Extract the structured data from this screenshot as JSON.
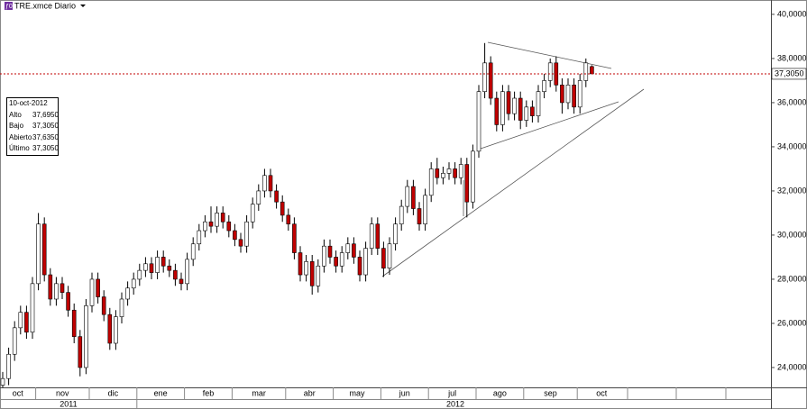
{
  "header": {
    "icon_label": "ƒ0",
    "title": "TRE.xmce Diario"
  },
  "info_box": {
    "date": "10-oct-2012",
    "rows": [
      [
        "Alto",
        "37,6950"
      ],
      [
        "Bajo",
        "37,3050"
      ],
      [
        "Abierto",
        "37,6350"
      ],
      [
        "Último",
        "37,3050"
      ]
    ]
  },
  "chart_data": {
    "type": "candlestick",
    "categories": [
      "oct",
      null,
      null,
      null,
      null,
      null,
      "nov",
      null,
      null,
      null,
      null,
      null,
      null,
      null,
      null,
      "dic",
      null,
      null,
      null,
      null,
      null,
      null,
      null,
      "ene",
      null,
      null,
      null,
      null,
      null,
      null,
      null,
      "feb",
      null,
      null,
      null,
      null,
      null,
      null,
      null,
      "mar",
      null,
      null,
      null,
      null,
      null,
      null,
      null,
      null,
      "abr",
      null,
      null,
      null,
      null,
      null,
      null,
      null,
      "may",
      null,
      null,
      null,
      null,
      null,
      null,
      null,
      "jun",
      null,
      null,
      null,
      null,
      null,
      null,
      null,
      "jul",
      null,
      null,
      null,
      null,
      null,
      null,
      null,
      "ago",
      null,
      null,
      null,
      null,
      null,
      null,
      null,
      "sep",
      null,
      null,
      null,
      null,
      null,
      null,
      null,
      null,
      "oct",
      null,
      null
    ],
    "years": [
      "2011",
      "2012"
    ],
    "open": [
      23.2,
      23.5,
      24.6,
      25.8,
      26.5,
      25.6,
      27.8,
      30.5,
      28.2,
      27.1,
      27.8,
      27.4,
      26.6,
      25.4,
      24.0,
      26.8,
      28.0,
      27.2,
      26.4,
      25.1,
      26.3,
      27.1,
      27.6,
      28.0,
      28.4,
      28.7,
      28.3,
      29.0,
      28.6,
      28.4,
      28.0,
      27.8,
      28.9,
      29.6,
      30.2,
      30.6,
      30.4,
      31.0,
      30.6,
      30.2,
      29.8,
      29.5,
      30.6,
      31.4,
      32.0,
      32.7,
      32.0,
      31.5,
      30.9,
      30.5,
      29.2,
      28.2,
      28.8,
      27.7,
      28.6,
      29.5,
      29.0,
      28.6,
      29.2,
      29.6,
      29.0,
      28.2,
      29.4,
      30.5,
      29.4,
      28.5,
      29.6,
      30.5,
      31.3,
      32.2,
      31.2,
      30.5,
      31.8,
      33.0,
      32.6,
      32.8,
      33.0,
      32.6,
      33.2,
      31.5,
      33.8,
      36.5,
      37.8,
      36.2,
      35.0,
      36.5,
      35.5,
      36.2,
      35.2,
      35.8,
      35.4,
      36.5,
      37.0,
      37.8,
      36.8,
      36.0,
      36.8,
      35.8,
      37.0,
      37.635
    ],
    "high": [
      23.8,
      24.9,
      26.1,
      26.8,
      26.8,
      28.1,
      31.0,
      30.8,
      28.5,
      28.1,
      28.1,
      27.7,
      26.9,
      25.7,
      27.1,
      28.3,
      28.3,
      27.5,
      26.7,
      26.6,
      27.4,
      27.9,
      28.3,
      28.7,
      29.0,
      29.0,
      29.3,
      29.3,
      28.9,
      28.7,
      28.3,
      29.2,
      29.9,
      30.5,
      30.9,
      31.3,
      31.3,
      31.3,
      30.9,
      30.5,
      30.1,
      30.9,
      31.7,
      32.3,
      33.0,
      33.0,
      32.3,
      31.8,
      31.2,
      30.8,
      29.5,
      29.1,
      29.1,
      28.9,
      29.8,
      29.8,
      29.3,
      29.5,
      29.9,
      29.9,
      29.3,
      29.7,
      30.8,
      30.8,
      29.7,
      29.9,
      30.8,
      31.6,
      32.5,
      32.5,
      31.5,
      32.1,
      33.3,
      33.5,
      33.1,
      33.3,
      33.3,
      33.5,
      33.5,
      34.1,
      36.8,
      38.7,
      38.1,
      36.5,
      36.8,
      36.8,
      36.5,
      36.5,
      36.1,
      36.1,
      36.8,
      37.3,
      38.0,
      38.1,
      37.1,
      37.1,
      37.1,
      37.3,
      38.0,
      37.695
    ],
    "low": [
      23.1,
      23.2,
      24.3,
      25.5,
      25.3,
      25.3,
      27.5,
      27.9,
      26.8,
      26.8,
      27.1,
      26.3,
      25.1,
      23.6,
      23.7,
      26.5,
      26.9,
      26.1,
      24.8,
      24.8,
      26.0,
      26.8,
      27.3,
      27.7,
      28.1,
      28.0,
      28.0,
      28.3,
      28.1,
      27.7,
      27.5,
      27.5,
      28.6,
      29.3,
      29.9,
      30.1,
      30.1,
      30.3,
      29.9,
      29.5,
      29.2,
      29.2,
      30.3,
      31.1,
      31.7,
      31.7,
      31.2,
      30.6,
      30.2,
      28.9,
      27.9,
      27.9,
      27.3,
      27.4,
      28.3,
      28.7,
      28.3,
      28.3,
      28.9,
      28.7,
      27.9,
      27.9,
      29.1,
      29.1,
      28.1,
      28.2,
      29.3,
      30.2,
      31.0,
      30.9,
      30.2,
      30.2,
      31.5,
      32.3,
      32.3,
      32.5,
      32.3,
      32.3,
      30.8,
      31.2,
      33.5,
      36.2,
      35.9,
      34.7,
      34.7,
      35.2,
      35.2,
      34.8,
      34.9,
      35.1,
      35.1,
      36.2,
      36.7,
      36.5,
      35.5,
      35.7,
      35.5,
      35.5,
      36.7,
      37.305
    ],
    "close": [
      23.5,
      24.6,
      25.8,
      26.5,
      25.6,
      27.8,
      30.5,
      28.2,
      27.1,
      27.8,
      27.4,
      26.6,
      25.4,
      24.0,
      26.8,
      28.0,
      27.2,
      26.4,
      25.1,
      26.3,
      27.1,
      27.6,
      28.0,
      28.4,
      28.7,
      28.3,
      29.0,
      28.6,
      28.4,
      28.0,
      27.8,
      28.9,
      29.6,
      30.2,
      30.6,
      30.4,
      31.0,
      30.6,
      30.2,
      29.8,
      29.5,
      30.6,
      31.4,
      32.0,
      32.7,
      32.0,
      31.5,
      30.9,
      30.5,
      29.2,
      28.2,
      28.8,
      27.7,
      28.6,
      29.5,
      29.0,
      28.6,
      29.2,
      29.6,
      29.0,
      28.2,
      29.4,
      30.5,
      29.4,
      28.5,
      29.6,
      30.5,
      31.3,
      32.2,
      31.2,
      30.5,
      31.8,
      33.0,
      32.6,
      32.8,
      33.0,
      32.6,
      33.2,
      31.5,
      33.8,
      36.5,
      37.8,
      36.2,
      35.0,
      36.5,
      35.5,
      36.2,
      35.2,
      35.8,
      35.4,
      36.5,
      37.0,
      37.8,
      36.8,
      36.0,
      36.8,
      35.8,
      37.0,
      37.8,
      37.305
    ],
    "up_color": "#ffffff",
    "down_color": "#c00000",
    "wick_color": "#000000",
    "last_price": {
      "value": 37.305,
      "label": "37,3050"
    },
    "last_price_color": "#c00000",
    "ylim": [
      23.1,
      40.65
    ],
    "yticks": [
      {
        "value": 24,
        "label": "24,0000"
      },
      {
        "value": 26,
        "label": "26,0000"
      },
      {
        "value": 28,
        "label": "28,0000"
      },
      {
        "value": 30,
        "label": "30,0000"
      },
      {
        "value": 32,
        "label": "32,0000"
      },
      {
        "value": 34,
        "label": "34,0000"
      },
      {
        "value": 36,
        "label": "36,0000"
      },
      {
        "value": 38,
        "label": "38,0000"
      },
      {
        "value": 40,
        "label": "40,0000"
      }
    ]
  }
}
